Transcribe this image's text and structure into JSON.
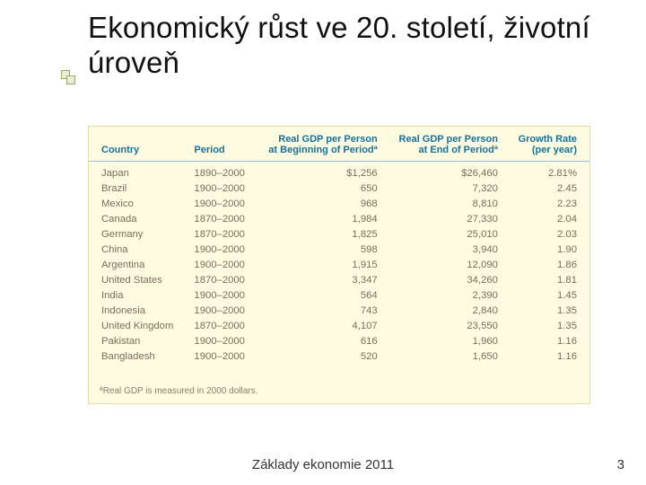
{
  "slide": {
    "title": "Ekonomický růst ve 20. století, životní úroveň",
    "footer": "Základy ekonomie 2011",
    "page_number": "3",
    "title_fontsize": 33,
    "title_color": "#111111",
    "background_color": "#ffffff"
  },
  "table": {
    "type": "table",
    "background_color": "#fffbe0",
    "border_color": "#e2dca8",
    "header_color": "#15729e",
    "header_separator_color": "#9fc1d3",
    "body_text_color": "#7b6d5c",
    "header_fontsize": 11,
    "body_fontsize": 11.3,
    "columns": [
      {
        "label": "Country",
        "align": "left"
      },
      {
        "label": "Period",
        "align": "left"
      },
      {
        "label": "Real GDP per Person\nat Beginning of Periodª",
        "align": "right"
      },
      {
        "label": "Real GDP per Person\nat End of Periodª",
        "align": "right"
      },
      {
        "label": "Growth Rate\n(per year)",
        "align": "right"
      }
    ],
    "rows": [
      [
        "Japan",
        "1890–2000",
        "$1,256",
        "$26,460",
        "2.81%"
      ],
      [
        "Brazil",
        "1900–2000",
        "650",
        "7,320",
        "2.45"
      ],
      [
        "Mexico",
        "1900–2000",
        "968",
        "8,810",
        "2.23"
      ],
      [
        "Canada",
        "1870–2000",
        "1,984",
        "27,330",
        "2.04"
      ],
      [
        "Germany",
        "1870–2000",
        "1,825",
        "25,010",
        "2.03"
      ],
      [
        "China",
        "1900–2000",
        "598",
        "3,940",
        "1.90"
      ],
      [
        "Argentina",
        "1900–2000",
        "1,915",
        "12,090",
        "1.86"
      ],
      [
        "United States",
        "1870–2000",
        "3,347",
        "34,260",
        "1.81"
      ],
      [
        "India",
        "1900–2000",
        "564",
        "2,390",
        "1.45"
      ],
      [
        "Indonesia",
        "1900–2000",
        "743",
        "2,840",
        "1.35"
      ],
      [
        "United Kingdom",
        "1870–2000",
        "4,107",
        "23,550",
        "1.35"
      ],
      [
        "Pakistan",
        "1900–2000",
        "616",
        "1,960",
        "1.16"
      ],
      [
        "Bangladesh",
        "1900–2000",
        "520",
        "1,650",
        "1.16"
      ]
    ],
    "footnote": "ªReal GDP is measured in 2000 dollars."
  },
  "bullet_decor": {
    "square_border": "#9aa86a",
    "square_fill": "#e8efd0"
  }
}
